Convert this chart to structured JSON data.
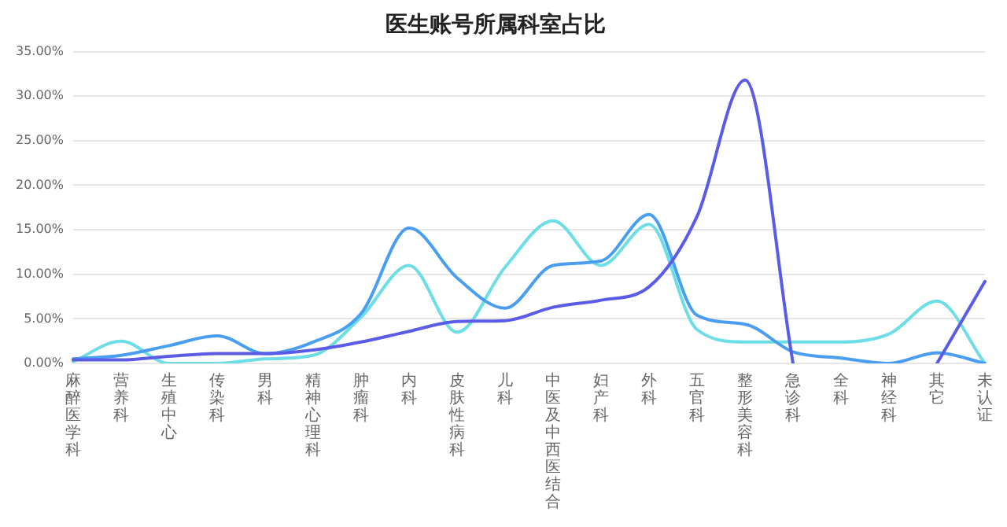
{
  "chart_data": {
    "type": "line",
    "title": "医生账号所属科室占比",
    "categories": [
      "麻醉医学科",
      "营养科",
      "生殖中心",
      "传染科",
      "男科",
      "精神心理科",
      "肿瘤科",
      "内科",
      "皮肤性病科",
      "儿科",
      "中医及中西医结合",
      "妇产科",
      "外科",
      "五官科",
      "整形美容科",
      "急诊科",
      "全科",
      "神经科",
      "其它",
      "未认证"
    ],
    "series": [
      {
        "color": "#5b5ce6",
        "values": [
          0.4,
          0.4,
          0.8,
          1.1,
          1.1,
          1.5,
          2.4,
          3.6,
          4.7,
          4.8,
          6.3,
          7.1,
          8.6,
          16.5,
          31.8,
          0,
          null,
          null,
          0,
          9.2
        ]
      },
      {
        "color": "#4a9ef0",
        "values": [
          0.5,
          0.9,
          2.0,
          3.1,
          1.1,
          2.4,
          5.6,
          15.2,
          9.6,
          6.2,
          11.0,
          11.5,
          16.7,
          5.4,
          4.4,
          1.3,
          0.6,
          0,
          1.2,
          0
        ]
      },
      {
        "color": "#6ddde6",
        "values": [
          0.2,
          2.5,
          0,
          0,
          0.5,
          0.9,
          5.2,
          11.0,
          3.5,
          10.8,
          16.0,
          11.0,
          15.6,
          3.8,
          2.4,
          2.4,
          2.4,
          3.3,
          7.0,
          0
        ]
      }
    ],
    "ylim": [
      0,
      35
    ],
    "yticks": [
      {
        "value": 0,
        "label": "0.00%"
      },
      {
        "value": 5,
        "label": "5.00%"
      },
      {
        "value": 10,
        "label": "10.00%"
      },
      {
        "value": 15,
        "label": "15.00%"
      },
      {
        "value": 20,
        "label": "20.00%"
      },
      {
        "value": 25,
        "label": "25.00%"
      },
      {
        "value": 30,
        "label": "30.00%"
      },
      {
        "value": 35,
        "label": "35.00%"
      }
    ],
    "grid": "y",
    "legend": false,
    "marker": "none",
    "line_style": "solid"
  }
}
